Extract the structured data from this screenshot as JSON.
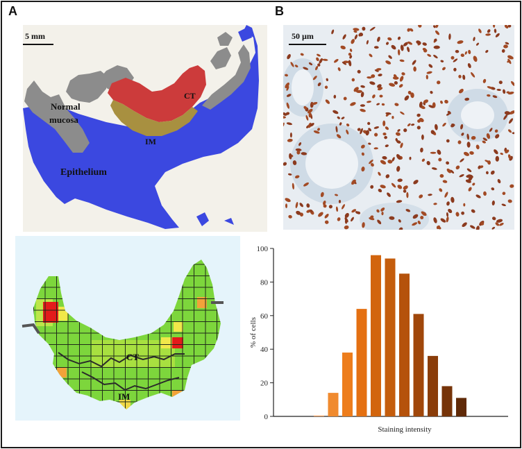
{
  "panels": {
    "a": {
      "letter": "A",
      "scalebar": "5 mm",
      "regions": {
        "normal_mucosa_line1": "Normal",
        "normal_mucosa_line2": "mucosa",
        "ct": "CT",
        "im": "IM",
        "epithelium": "Epithelium"
      },
      "region_colors": {
        "normal_mucosa": "#8c8c8c",
        "ct": "#cc3b3b",
        "im": "#a89040",
        "epithelium": "#3b48e0"
      },
      "grid_labels": {
        "ct": "CT",
        "im": "IM"
      }
    },
    "b": {
      "letter": "B",
      "scalebar": "50 µm"
    }
  },
  "chart_data": {
    "type": "bar",
    "ylabel": "% of cells",
    "xlabel": "Staining intensity",
    "ylim": [
      0,
      100
    ],
    "yticks": [
      0,
      20,
      40,
      60,
      80,
      100
    ],
    "values": [
      0.5,
      14,
      38,
      64,
      96,
      94,
      85,
      61,
      36,
      18,
      11
    ],
    "colors": [
      "#f3a060",
      "#f08a2e",
      "#ed7d1c",
      "#e47012",
      "#d2650e",
      "#c45d0d",
      "#b5520c",
      "#a0470b",
      "#8a3d0a",
      "#763409",
      "#602a08"
    ]
  }
}
